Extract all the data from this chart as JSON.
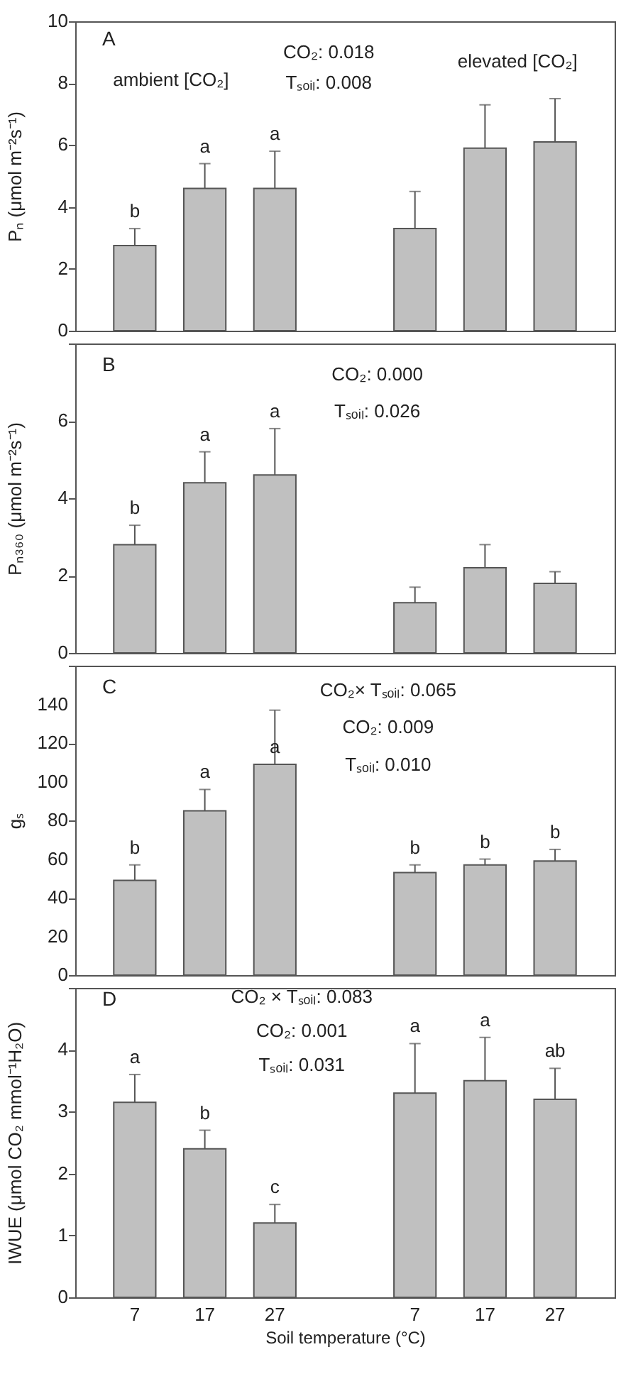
{
  "chart_data": [
    {
      "type": "bar",
      "ylabel": "Pₙ (μmol m⁻²s⁻¹)",
      "categories": [
        "7",
        "17",
        "27",
        null,
        "7",
        "17",
        "27"
      ],
      "color": "#c0c0c0",
      "values": [
        2.75,
        4.6,
        4.6,
        null,
        3.3,
        5.9,
        6.1
      ],
      "errors": [
        [
          2.75,
          3.3
        ],
        [
          4.6,
          5.4
        ],
        [
          4.6,
          5.8
        ],
        null,
        [
          3.3,
          4.5
        ],
        [
          5.9,
          7.3
        ],
        [
          6.1,
          7.5
        ]
      ],
      "value_labels": [
        "b",
        "a",
        "a",
        null,
        null,
        null,
        null
      ],
      "ylim": [
        0,
        10
      ],
      "yticks": [
        0,
        2,
        4,
        6,
        8,
        10
      ],
      "tick_labels": "y",
      "annotations": [
        "A",
        "ambient [CO₂]",
        "CO₂: 0.018",
        "Tₛₒᵢₗ: 0.008",
        "elevated [CO₂]"
      ]
    },
    {
      "type": "bar",
      "ylabel": "Pₙ₃₆₀ (μmol m⁻²s⁻¹)",
      "categories": [
        "7",
        "17",
        "27",
        null,
        "7",
        "17",
        "27"
      ],
      "color": "#c0c0c0",
      "values": [
        2.8,
        4.4,
        4.6,
        null,
        1.3,
        2.2,
        1.8
      ],
      "errors": [
        [
          2.8,
          3.3
        ],
        [
          4.4,
          5.2
        ],
        [
          4.6,
          5.8
        ],
        null,
        [
          1.3,
          1.7
        ],
        [
          2.2,
          2.8
        ],
        [
          1.8,
          2.1
        ]
      ],
      "value_labels": [
        "b",
        "a",
        "a",
        null,
        null,
        null,
        null
      ],
      "ylim": [
        0,
        8
      ],
      "yticks": [
        0,
        2,
        4,
        6,
        {
          "value": 8,
          "label": null
        }
      ],
      "tick_labels": "y",
      "annotations": [
        "B",
        "CO₂: 0.000",
        "Tₛₒᵢₗ: 0.026"
      ]
    },
    {
      "type": "bar",
      "ylabel": "gₛ",
      "categories": [
        "7",
        "17",
        "27",
        null,
        "7",
        "17",
        "27"
      ],
      "color": "#c0c0c0",
      "values": [
        49,
        85,
        109,
        null,
        53,
        57,
        59
      ],
      "errors": [
        [
          49,
          57
        ],
        [
          85,
          96
        ],
        [
          109,
          137
        ],
        null,
        [
          53,
          57
        ],
        [
          57,
          60
        ],
        [
          59,
          65
        ]
      ],
      "value_labels": [
        "b",
        "a",
        "a",
        null,
        "b",
        "b",
        "b"
      ],
      "ylim": [
        0,
        160
      ],
      "yticks": [
        0,
        20,
        40,
        60,
        80,
        100,
        120,
        140,
        {
          "value": 160,
          "label": null
        }
      ],
      "tick_labels": "y",
      "annotations": [
        "C",
        "CO₂× Tₛₒᵢₗ: 0.065",
        "CO₂: 0.009",
        "Tₛₒᵢₗ: 0.010"
      ]
    },
    {
      "type": "bar",
      "ylabel": "IWUE (μmol CO₂ mmol⁻¹H₂O)",
      "xlabel": "Soil temperature (°C)",
      "categories": [
        "7",
        "17",
        "27",
        null,
        "7",
        "17",
        "27"
      ],
      "color": "#c0c0c0",
      "values": [
        3.15,
        2.4,
        1.2,
        null,
        3.3,
        3.5,
        3.2
      ],
      "errors": [
        [
          3.15,
          3.6
        ],
        [
          2.4,
          2.7
        ],
        [
          1.2,
          1.5
        ],
        null,
        [
          3.3,
          4.1
        ],
        [
          3.5,
          4.2
        ],
        [
          3.2,
          3.7
        ]
      ],
      "value_labels": [
        "a",
        "b",
        "c",
        null,
        "a",
        "a",
        "ab"
      ],
      "ylim": [
        0,
        5
      ],
      "yticks": [
        0,
        1,
        2,
        3,
        4,
        {
          "value": 5,
          "label": null
        }
      ],
      "annotations": [
        "D",
        "CO₂ × Tₛₒᵢₗ: 0.083",
        "CO₂: 0.001",
        "Tₛₒᵢₗ: 0.031"
      ]
    }
  ]
}
